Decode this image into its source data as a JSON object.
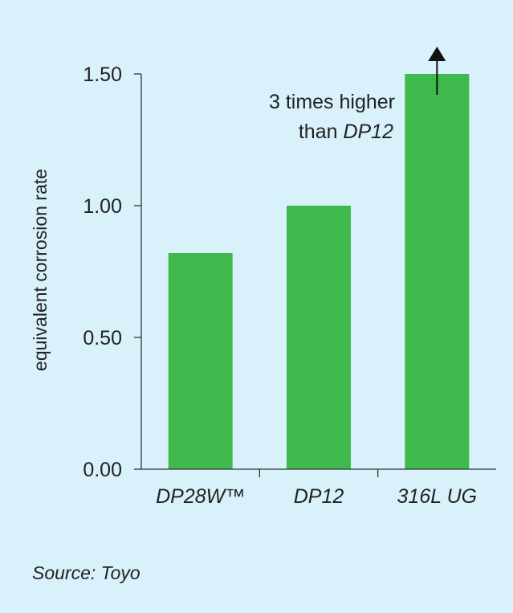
{
  "chart_data": {
    "type": "bar",
    "categories": [
      "DP28W™",
      "DP12",
      "316L UG"
    ],
    "values": [
      0.82,
      1.0,
      1.5
    ],
    "ylabel": "equivalent corrosion rate",
    "xlabel": "",
    "ylim": [
      0,
      1.5
    ],
    "yticks": [
      "0.00",
      "0.50",
      "1.00",
      "1.50"
    ],
    "grid": false,
    "bar_color": "#3fb94b",
    "annotation": {
      "category": "316L UG",
      "line1": "3 times higher",
      "line2_prefix": "than ",
      "line2_italic": "DP12",
      "arrow": "up"
    }
  },
  "source": "Source: Toyo"
}
